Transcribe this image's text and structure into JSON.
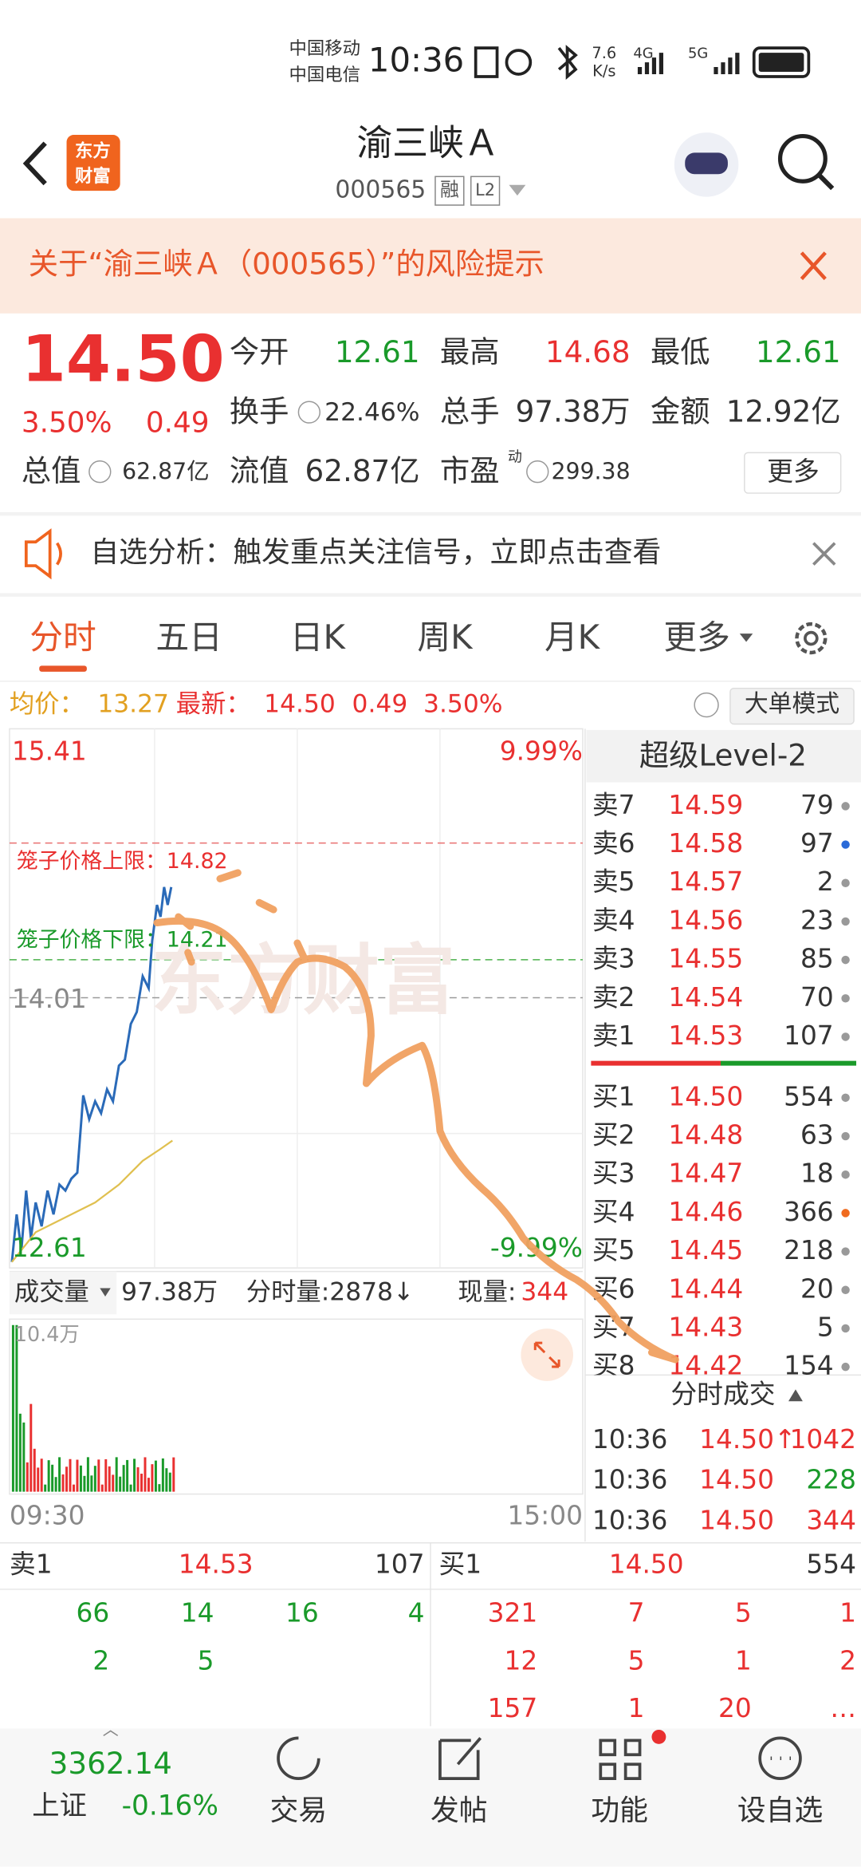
{
  "status_bar": {
    "carrier1": "中国移动",
    "carrier2": "中国电信",
    "time": "10:36",
    "speed": "7.6",
    "speed_unit": "K/s",
    "net1": "4G",
    "net2": "5G"
  },
  "header": {
    "logo_top": "东方",
    "logo_bottom": "财富",
    "title": "渝三峡Ａ",
    "code": "000565",
    "tag1": "融",
    "tag2": "L2"
  },
  "banner": {
    "text": "关于“渝三峡Ａ（000565）”的风险提示"
  },
  "quote": {
    "price": "14.50",
    "change_pct": "3.50%",
    "change": "0.49",
    "pe_sup": "动",
    "more": "更多",
    "fields": [
      {
        "label": "今开",
        "value": "12.61",
        "color": "#1a9a2a"
      },
      {
        "label": "最高",
        "value": "14.68",
        "color": "#e93030"
      },
      {
        "label": "最低",
        "value": "12.61",
        "color": "#1a9a2a"
      },
      {
        "label": "换手",
        "value": "22.46%",
        "color": "#333333"
      },
      {
        "label": "总手",
        "value": "97.38万",
        "color": "#333333"
      },
      {
        "label": "金额",
        "value": "12.92亿",
        "color": "#333333"
      },
      {
        "label": "总值",
        "value": "62.87亿",
        "color": "#333333"
      },
      {
        "label": "流值",
        "value": "62.87亿",
        "color": "#333333"
      },
      {
        "label": "市盈",
        "value": "299.38",
        "color": "#333333"
      }
    ]
  },
  "notice": {
    "text": "自选分析：触发重点关注信号，立即点击查看"
  },
  "tabs": [
    "分时",
    "五日",
    "日K",
    "周K",
    "月K",
    "更多"
  ],
  "info": {
    "avg_label": "均价：",
    "avg": "13.27",
    "last_label": "最新：",
    "last": "14.50",
    "change": "0.49",
    "pct": "3.50%",
    "mode": "大单模式"
  },
  "chart": {
    "top_price": "15.41",
    "top_pct": "9.99%",
    "mid_price": "14.01",
    "bottom_price": "12.61",
    "bottom_pct": "-9.99%",
    "upper_cage": "笼子价格上限：14.82",
    "lower_cage": "笼子价格下限：14.21",
    "watermark": "东方财富"
  },
  "level2": {
    "title": "超级Level-2",
    "asks": [
      {
        "label": "卖7",
        "price": "14.59",
        "volume": "79",
        "dot": "#999999"
      },
      {
        "label": "卖6",
        "price": "14.58",
        "volume": "97",
        "dot": "#2a6ad8"
      },
      {
        "label": "卖5",
        "price": "14.57",
        "volume": "2",
        "dot": "#999999"
      },
      {
        "label": "卖4",
        "price": "14.56",
        "volume": "23",
        "dot": "#999999"
      },
      {
        "label": "卖3",
        "price": "14.55",
        "volume": "85",
        "dot": "#999999"
      },
      {
        "label": "卖2",
        "price": "14.54",
        "volume": "70",
        "dot": "#999999"
      },
      {
        "label": "卖1",
        "price": "14.53",
        "volume": "107",
        "dot": "#999999"
      }
    ],
    "bids": [
      {
        "label": "买1",
        "price": "14.50",
        "volume": "554",
        "dot": "#999999"
      },
      {
        "label": "买2",
        "price": "14.48",
        "volume": "63",
        "dot": "#999999"
      },
      {
        "label": "买3",
        "price": "14.47",
        "volume": "18",
        "dot": "#999999"
      },
      {
        "label": "买4",
        "price": "14.46",
        "volume": "366",
        "dot": "#f06a1e"
      },
      {
        "label": "买5",
        "price": "14.45",
        "volume": "218",
        "dot": "#999999"
      },
      {
        "label": "买6",
        "price": "14.44",
        "volume": "20",
        "dot": "#999999"
      },
      {
        "label": "买7",
        "price": "14.43",
        "volume": "5",
        "dot": "#999999"
      },
      {
        "label": "买8",
        "price": "14.42",
        "volume": "154",
        "dot": "#999999"
      }
    ]
  },
  "volume": {
    "label": "成交量",
    "total": "97.38万",
    "tick_label": "分时量:2878↓",
    "current_label": "现量:",
    "current": "344",
    "max": "10.4万",
    "start_time": "09:30",
    "end_time": "15:00"
  },
  "trades": {
    "title": "分时成交",
    "rows": [
      {
        "time": "10:36",
        "price": "14.50↑",
        "volume": "1042",
        "color": "#e93030"
      },
      {
        "time": "10:36",
        "price": "14.50",
        "volume": "228",
        "color": "#1a9a2a"
      },
      {
        "time": "10:36",
        "price": "14.50",
        "volume": "344",
        "color": "#e93030"
      }
    ]
  },
  "queue": {
    "ask": {
      "label": "卖1",
      "price": "14.53",
      "volume": "107",
      "rows": [
        [
          "66",
          "14",
          "16",
          "4"
        ],
        [
          "2",
          "5"
        ]
      ]
    },
    "bid": {
      "label": "买1",
      "price": "14.50",
      "volume": "554",
      "rows": [
        [
          "321",
          "7",
          "5",
          "1"
        ],
        [
          "12",
          "5",
          "1",
          "2"
        ],
        [
          "157",
          "1",
          "20",
          "…"
        ]
      ]
    }
  },
  "nav": {
    "index_value": "3362.14",
    "index_name": "上证",
    "index_change": "-0.16%",
    "items": [
      "交易",
      "发帖",
      "功能",
      "设自选"
    ]
  }
}
